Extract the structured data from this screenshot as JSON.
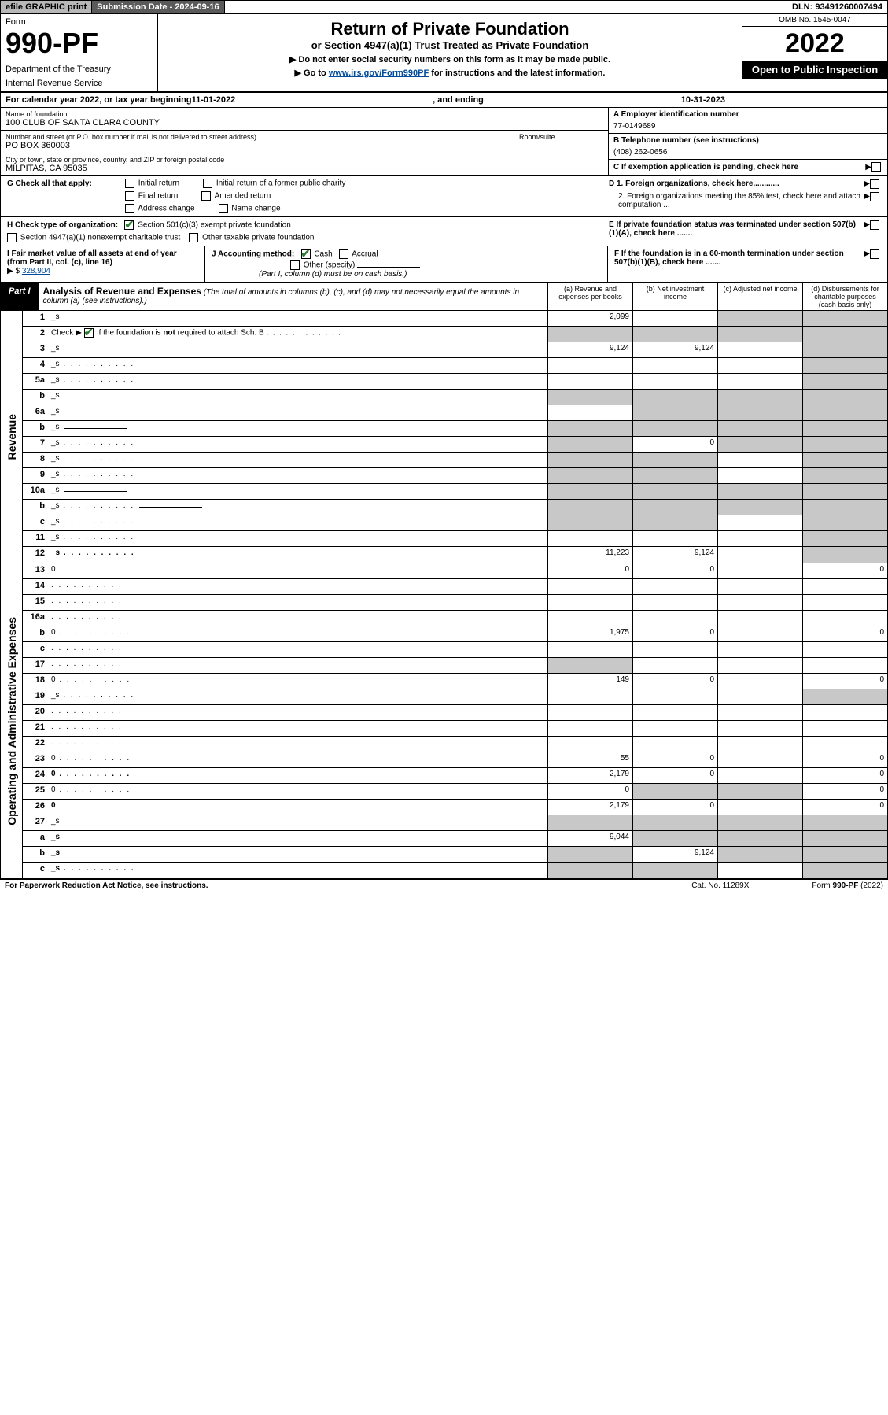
{
  "topbar": {
    "efile": "efile GRAPHIC print",
    "subdate_lbl": "Submission Date - 2024-09-16",
    "dln": "DLN: 93491260007494"
  },
  "header": {
    "form": "Form",
    "num": "990-PF",
    "dept": "Department of the Treasury",
    "irs": "Internal Revenue Service",
    "title": "Return of Private Foundation",
    "sub": "or Section 4947(a)(1) Trust Treated as Private Foundation",
    "note1": "▶ Do not enter social security numbers on this form as it may be made public.",
    "note2_pre": "▶ Go to ",
    "note2_link": "www.irs.gov/Form990PF",
    "note2_post": " for instructions and the latest information.",
    "omb": "OMB No. 1545-0047",
    "year": "2022",
    "open": "Open to Public Inspection"
  },
  "cal": {
    "pre": "For calendar year 2022, or tax year beginning ",
    "begin": "11-01-2022",
    "mid": ", and ending ",
    "end": "10-31-2023"
  },
  "name": {
    "lbl": "Name of foundation",
    "val": "100 CLUB OF SANTA CLARA COUNTY"
  },
  "addr": {
    "lbl": "Number and street (or P.O. box number if mail is not delivered to street address)",
    "val": "PO BOX 360003",
    "room_lbl": "Room/suite"
  },
  "city": {
    "lbl": "City or town, state or province, country, and ZIP or foreign postal code",
    "val": "MILPITAS, CA  95035"
  },
  "A": {
    "lbl": "A Employer identification number",
    "val": "77-0149689"
  },
  "B": {
    "lbl": "B Telephone number (see instructions)",
    "val": "(408) 262-0656"
  },
  "C": {
    "lbl": "C If exemption application is pending, check here"
  },
  "D": {
    "d1": "D 1. Foreign organizations, check here............",
    "d2": "2. Foreign organizations meeting the 85% test, check here and attach computation ..."
  },
  "E": {
    "lbl": "E  If private foundation status was terminated under section 507(b)(1)(A), check here ......."
  },
  "F": {
    "lbl": "F  If the foundation is in a 60-month termination under section 507(b)(1)(B), check here ......."
  },
  "G": {
    "lbl": "G Check all that apply:",
    "opts": [
      "Initial return",
      "Initial return of a former public charity",
      "Final return",
      "Amended return",
      "Address change",
      "Name change"
    ]
  },
  "H": {
    "lbl": "H Check type of organization:",
    "o1": "Section 501(c)(3) exempt private foundation",
    "o2": "Section 4947(a)(1) nonexempt charitable trust",
    "o3": "Other taxable private foundation"
  },
  "I": {
    "lbl": "I Fair market value of all assets at end of year (from Part II, col. (c), line 16)",
    "arrow": "▶ $",
    "val": "328,904"
  },
  "J": {
    "lbl": "J Accounting method:",
    "cash": "Cash",
    "accrual": "Accrual",
    "other": "Other (specify)",
    "note": "(Part I, column (d) must be on cash basis.)"
  },
  "part1": {
    "tag": "Part I",
    "title": "Analysis of Revenue and Expenses",
    "note": " (The total of amounts in columns (b), (c), and (d) may not necessarily equal the amounts in column (a) (see instructions).)",
    "cols": {
      "a": "(a)   Revenue and expenses per books",
      "b": "(b)   Net investment income",
      "c": "(c)   Adjusted net income",
      "d": "(d)  Disbursements for charitable purposes (cash basis only)"
    }
  },
  "sides": {
    "rev": "Revenue",
    "exp": "Operating and Administrative Expenses"
  },
  "rows_rev": [
    {
      "n": "1",
      "d": "_s",
      "a": "2,099",
      "b": "",
      "c": "_s"
    },
    {
      "n": "2",
      "d": "_s",
      "a": "_s",
      "b": "_s",
      "c": "_s",
      "dots": true,
      "checknote": true
    },
    {
      "n": "3",
      "d": "_s",
      "a": "9,124",
      "b": "9,124",
      "c": ""
    },
    {
      "n": "4",
      "d": "_s",
      "a": "",
      "b": "",
      "c": "",
      "dots": true
    },
    {
      "n": "5a",
      "d": "_s",
      "a": "",
      "b": "",
      "c": "",
      "dots": true
    },
    {
      "n": "b",
      "d": "_s",
      "a": "_s",
      "b": "_s",
      "c": "_s",
      "inline": true
    },
    {
      "n": "6a",
      "d": "_s",
      "a": "",
      "b": "_s",
      "c": "_s"
    },
    {
      "n": "b",
      "d": "_s",
      "a": "_s",
      "b": "_s",
      "c": "_s",
      "inline": true
    },
    {
      "n": "7",
      "d": "_s",
      "a": "_s",
      "b": "0",
      "c": "_s",
      "dots": true
    },
    {
      "n": "8",
      "d": "_s",
      "a": "_s",
      "b": "_s",
      "c": "",
      "dots": true
    },
    {
      "n": "9",
      "d": "_s",
      "a": "_s",
      "b": "_s",
      "c": "",
      "dots": true
    },
    {
      "n": "10a",
      "d": "_s",
      "a": "_s",
      "b": "_s",
      "c": "_s",
      "inline": true
    },
    {
      "n": "b",
      "d": "_s",
      "a": "_s",
      "b": "_s",
      "c": "_s",
      "inline": true,
      "dots": true
    },
    {
      "n": "c",
      "d": "_s",
      "a": "_s",
      "b": "_s",
      "c": "",
      "dots": true
    },
    {
      "n": "11",
      "d": "_s",
      "a": "",
      "b": "",
      "c": "",
      "dots": true
    },
    {
      "n": "12",
      "d": "_s",
      "a": "11,223",
      "b": "9,124",
      "c": "",
      "dots": true,
      "bold": true
    }
  ],
  "rows_exp": [
    {
      "n": "13",
      "d": "0",
      "a": "0",
      "b": "0",
      "c": ""
    },
    {
      "n": "14",
      "d": "",
      "a": "",
      "b": "",
      "c": "",
      "dots": true
    },
    {
      "n": "15",
      "d": "",
      "a": "",
      "b": "",
      "c": "",
      "dots": true
    },
    {
      "n": "16a",
      "d": "",
      "a": "",
      "b": "",
      "c": "",
      "dots": true
    },
    {
      "n": "b",
      "d": "0",
      "a": "1,975",
      "b": "0",
      "c": "",
      "dots": true
    },
    {
      "n": "c",
      "d": "",
      "a": "",
      "b": "",
      "c": "",
      "dots": true
    },
    {
      "n": "17",
      "d": "",
      "a": "_s",
      "b": "",
      "c": "",
      "dots": true
    },
    {
      "n": "18",
      "d": "0",
      "a": "149",
      "b": "0",
      "c": "",
      "dots": true
    },
    {
      "n": "19",
      "d": "_s",
      "a": "",
      "b": "",
      "c": "",
      "dots": true
    },
    {
      "n": "20",
      "d": "",
      "a": "",
      "b": "",
      "c": "",
      "dots": true
    },
    {
      "n": "21",
      "d": "",
      "a": "",
      "b": "",
      "c": "",
      "dots": true
    },
    {
      "n": "22",
      "d": "",
      "a": "",
      "b": "",
      "c": "",
      "dots": true
    },
    {
      "n": "23",
      "d": "0",
      "a": "55",
      "b": "0",
      "c": "",
      "dots": true
    },
    {
      "n": "24",
      "d": "0",
      "a": "2,179",
      "b": "0",
      "c": "",
      "dots": true,
      "bold": true
    },
    {
      "n": "25",
      "d": "0",
      "a": "0",
      "b": "_s",
      "c": "_s",
      "dots": true
    },
    {
      "n": "26",
      "d": "0",
      "a": "2,179",
      "b": "0",
      "c": "",
      "bold": true
    },
    {
      "n": "27",
      "d": "_s",
      "a": "_s",
      "b": "_s",
      "c": "_s"
    },
    {
      "n": "a",
      "d": "_s",
      "a": "9,044",
      "b": "_s",
      "c": "_s",
      "bold": true
    },
    {
      "n": "b",
      "d": "_s",
      "a": "_s",
      "b": "9,124",
      "c": "_s",
      "bold": true
    },
    {
      "n": "c",
      "d": "_s",
      "a": "_s",
      "b": "_s",
      "c": "",
      "bold": true,
      "dots": true
    }
  ],
  "footer": {
    "left": "For Paperwork Reduction Act Notice, see instructions.",
    "mid": "Cat. No. 11289X",
    "right": "Form 990-PF (2022)"
  },
  "colors": {
    "link": "#004b9b",
    "shade": "#c8c8c8",
    "check": "#2e7d32"
  }
}
